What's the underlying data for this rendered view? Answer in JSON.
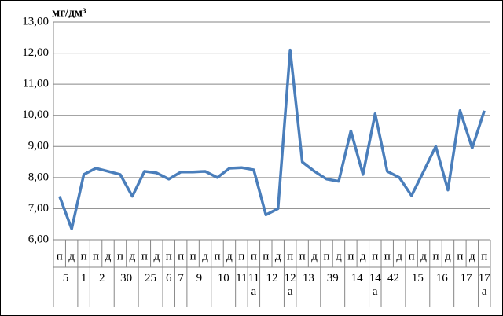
{
  "chart_data": {
    "type": "line",
    "unit_label": "мг/дм³",
    "categories": [
      [
        "п",
        "5"
      ],
      [
        "д",
        "5"
      ],
      [
        "п",
        "1"
      ],
      [
        "п",
        "2"
      ],
      [
        "д",
        "2"
      ],
      [
        "п",
        "30"
      ],
      [
        "д",
        "30"
      ],
      [
        "п",
        "25"
      ],
      [
        "д",
        "25"
      ],
      [
        "п",
        "6"
      ],
      [
        "п",
        "7"
      ],
      [
        "п",
        "9"
      ],
      [
        "д",
        "9"
      ],
      [
        "п",
        "10"
      ],
      [
        "д",
        "10"
      ],
      [
        "п",
        "11"
      ],
      [
        "п",
        "11\nа"
      ],
      [
        "п",
        "12"
      ],
      [
        "д",
        "12"
      ],
      [
        "п",
        "12\nа"
      ],
      [
        "п",
        "13"
      ],
      [
        "д",
        "13"
      ],
      [
        "п",
        "39"
      ],
      [
        "д",
        "39"
      ],
      [
        "п",
        "14"
      ],
      [
        "д",
        "14"
      ],
      [
        "п",
        "14\nа"
      ],
      [
        "п",
        "42"
      ],
      [
        "д",
        "42"
      ],
      [
        "п",
        "15"
      ],
      [
        "д",
        "15"
      ],
      [
        "п",
        "16"
      ],
      [
        "д",
        "16"
      ],
      [
        "п",
        "17"
      ],
      [
        "д",
        "17"
      ],
      [
        "п",
        "17\nа"
      ]
    ],
    "values": [
      7.4,
      6.35,
      8.1,
      8.3,
      8.2,
      8.1,
      7.4,
      8.2,
      8.15,
      7.95,
      8.18,
      8.18,
      8.2,
      8.0,
      8.3,
      8.32,
      8.25,
      6.8,
      7.0,
      12.1,
      8.5,
      8.2,
      7.95,
      7.88,
      9.5,
      8.1,
      10.05,
      8.2,
      8.0,
      7.42,
      8.2,
      9.0,
      7.6,
      10.15,
      8.95,
      10.15
    ],
    "color": "#4a7ebb",
    "ylim": [
      6,
      13
    ],
    "yticks": [
      {
        "value": 6,
        "label": "6,00"
      },
      {
        "value": 7,
        "label": "7,00"
      },
      {
        "value": 8,
        "label": "8,00"
      },
      {
        "value": 9,
        "label": "9,00"
      },
      {
        "value": 10,
        "label": "10,00"
      },
      {
        "value": 11,
        "label": "11,00"
      },
      {
        "value": 12,
        "label": "12,00"
      },
      {
        "value": 13,
        "label": "13,00"
      }
    ],
    "grid": true
  }
}
